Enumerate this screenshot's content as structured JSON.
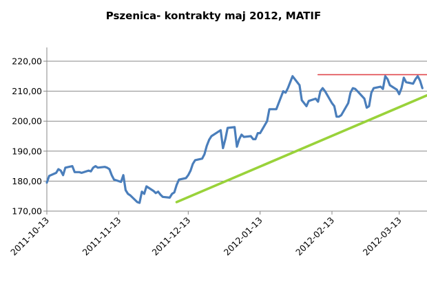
{
  "chart_data": {
    "type": "line",
    "title": "Pszenica- kontrakty maj 2012, MATIF",
    "xlabel": "",
    "ylabel": "",
    "ylim": [
      170,
      220
    ],
    "y_ticks": [
      "170,00",
      "180,00",
      "190,00",
      "200,00",
      "210,00",
      "220,00"
    ],
    "y_tick_values": [
      170,
      180,
      190,
      200,
      210,
      220
    ],
    "xlim": [
      "2011-10-13",
      "2012-03-25"
    ],
    "x_ticks": [
      "2011-10-13",
      "2011-11-13",
      "2011-12-13",
      "2012-01-13",
      "2012-02-13",
      "2012-03-13"
    ],
    "grid": "horizontal",
    "legend": "none",
    "colors": {
      "price": "#4a7ebb",
      "support": "#99d23a",
      "resistance": "#e0474c",
      "grid": "#878787"
    },
    "series": [
      {
        "color": "#4a7ebb",
        "x": [
          "2011-10-13",
          "2011-10-14",
          "2011-10-17",
          "2011-10-18",
          "2011-10-19",
          "2011-10-20",
          "2011-10-21",
          "2011-10-24",
          "2011-10-25",
          "2011-10-26",
          "2011-10-27",
          "2011-10-28",
          "2011-10-31",
          "2011-11-01",
          "2011-11-02",
          "2011-11-03",
          "2011-11-04",
          "2011-11-07",
          "2011-11-08",
          "2011-11-09",
          "2011-11-10",
          "2011-11-11",
          "2011-11-14",
          "2011-11-15",
          "2011-11-16",
          "2011-11-17",
          "2011-11-18",
          "2011-11-21",
          "2011-11-22",
          "2011-11-23",
          "2011-11-24",
          "2011-11-25",
          "2011-11-28",
          "2011-11-29",
          "2011-11-30",
          "2011-12-01",
          "2011-12-02",
          "2011-12-05",
          "2011-12-06",
          "2011-12-07",
          "2011-12-08",
          "2011-12-09",
          "2011-12-12",
          "2011-12-13",
          "2011-12-14",
          "2011-12-15",
          "2011-12-16",
          "2011-12-19",
          "2011-12-20",
          "2011-12-21",
          "2011-12-22",
          "2011-12-23",
          "2011-12-27",
          "2011-12-28",
          "2011-12-29",
          "2011-12-30",
          "2012-01-02",
          "2012-01-03",
          "2012-01-04",
          "2012-01-05",
          "2012-01-06",
          "2012-01-09",
          "2012-01-10",
          "2012-01-11",
          "2012-01-12",
          "2012-01-13",
          "2012-01-16",
          "2012-01-17",
          "2012-01-18",
          "2012-01-19",
          "2012-01-20",
          "2012-01-23",
          "2012-01-24",
          "2012-01-25",
          "2012-01-26",
          "2012-01-27",
          "2012-01-30",
          "2012-01-31",
          "2012-02-01",
          "2012-02-02",
          "2012-02-03",
          "2012-02-06",
          "2012-02-07",
          "2012-02-08",
          "2012-02-09",
          "2012-02-10",
          "2012-02-13",
          "2012-02-14",
          "2012-02-15",
          "2012-02-16",
          "2012-02-17",
          "2012-02-20",
          "2012-02-21",
          "2012-02-22",
          "2012-02-23",
          "2012-02-24",
          "2012-02-27",
          "2012-02-28",
          "2012-02-29",
          "2012-03-01",
          "2012-03-02",
          "2012-03-05",
          "2012-03-06",
          "2012-03-07",
          "2012-03-08",
          "2012-03-09",
          "2012-03-12",
          "2012-03-13",
          "2012-03-14",
          "2012-03-15",
          "2012-03-16",
          "2012-03-19",
          "2012-03-20",
          "2012-03-21",
          "2012-03-22",
          "2012-03-23"
        ],
        "values": [
          179.5,
          181.75,
          182.75,
          184.0,
          183.5,
          182.0,
          184.5,
          185.0,
          183.0,
          183.0,
          183.0,
          182.75,
          183.5,
          183.25,
          184.5,
          185.0,
          184.5,
          184.75,
          184.5,
          184.0,
          182.0,
          180.5,
          179.75,
          182.0,
          177.0,
          175.75,
          175.25,
          173.0,
          172.75,
          176.5,
          175.75,
          178.25,
          176.75,
          176.0,
          176.5,
          175.5,
          174.75,
          174.5,
          175.75,
          176.25,
          178.75,
          180.5,
          181.0,
          182.0,
          183.5,
          185.75,
          187.0,
          187.5,
          189.0,
          191.75,
          193.75,
          195.0,
          197.0,
          191.0,
          194.0,
          197.75,
          198.0,
          191.5,
          194.0,
          195.5,
          194.75,
          195.0,
          194.0,
          194.0,
          196.0,
          196.0,
          200.0,
          204.0,
          204.0,
          204.0,
          204.0,
          210.0,
          209.5,
          211.0,
          213.0,
          215.0,
          212.0,
          207.0,
          206.0,
          205.0,
          206.75,
          207.5,
          206.5,
          210.0,
          211.0,
          210.0,
          206.0,
          205.0,
          201.5,
          201.5,
          202.0,
          206.0,
          209.5,
          211.0,
          210.75,
          210.0,
          207.5,
          204.5,
          205.0,
          209.5,
          211.0,
          211.5,
          210.75,
          215.0,
          214.0,
          212.0,
          210.5,
          209.0,
          211.0,
          214.5,
          213.0,
          212.5,
          214.0,
          215.0,
          213.5,
          211.0
        ]
      },
      {
        "color": "#99d23a",
        "x": [
          "2011-12-08",
          "2012-03-25"
        ],
        "values": [
          173.0,
          208.6
        ]
      },
      {
        "color": "#e0474c",
        "x": [
          "2012-02-07",
          "2012-03-25"
        ],
        "values": [
          215.5,
          215.5
        ]
      }
    ]
  }
}
